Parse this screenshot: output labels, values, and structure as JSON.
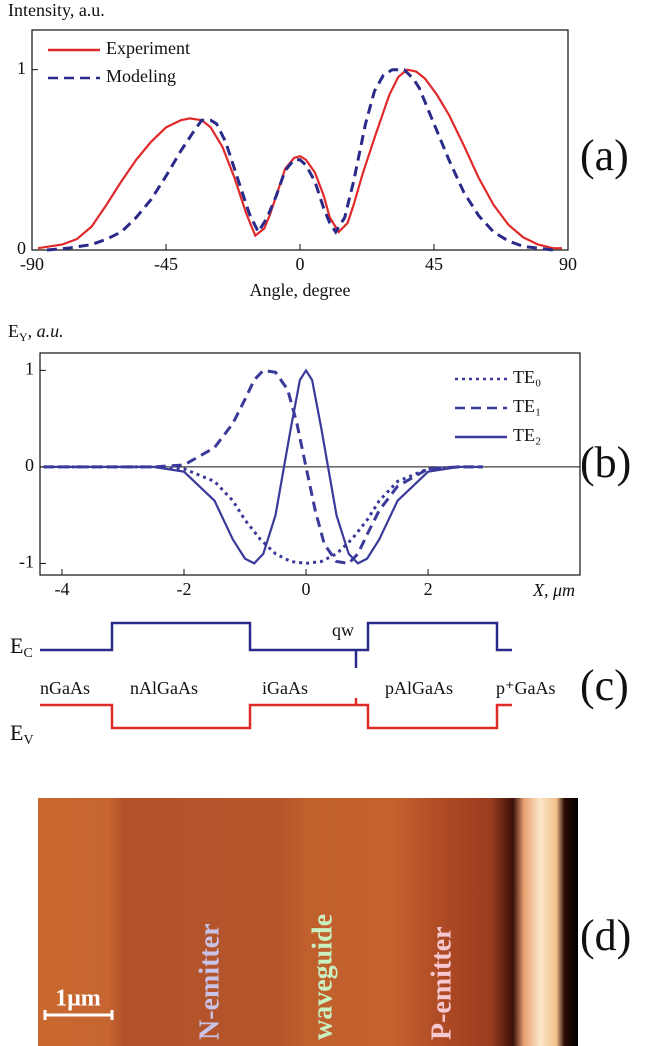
{
  "chart_data": [
    {
      "type": "line",
      "ylabel": "Intensity, a.u.",
      "xlabel": "Angle, degree",
      "panel_label": "(a)",
      "xlim": [
        -90,
        90
      ],
      "xticks": [
        -90,
        -45,
        0,
        45,
        90
      ],
      "ylim": [
        0,
        1.22
      ],
      "yticks": [
        0,
        1
      ],
      "legend": "upper left",
      "series": [
        {
          "name": "Experiment",
          "color": "#e02a2a",
          "line_style": "solid",
          "x": [
            -88,
            -80,
            -75,
            -70,
            -65,
            -60,
            -55,
            -50,
            -45,
            -40,
            -37,
            -33,
            -30,
            -26,
            -22,
            -18,
            -15,
            -12,
            -10,
            -7,
            -5,
            -2,
            0,
            2,
            5,
            8,
            10,
            13,
            16,
            18,
            21,
            25,
            30,
            33,
            36,
            39,
            42,
            46,
            50,
            55,
            60,
            65,
            70,
            75,
            80,
            85,
            88
          ],
          "values": [
            0.01,
            0.03,
            0.06,
            0.13,
            0.25,
            0.38,
            0.5,
            0.6,
            0.68,
            0.72,
            0.73,
            0.72,
            0.68,
            0.57,
            0.4,
            0.2,
            0.08,
            0.12,
            0.2,
            0.35,
            0.45,
            0.51,
            0.52,
            0.5,
            0.43,
            0.3,
            0.18,
            0.1,
            0.15,
            0.25,
            0.42,
            0.62,
            0.86,
            0.96,
            1.0,
            0.99,
            0.95,
            0.86,
            0.75,
            0.58,
            0.4,
            0.25,
            0.14,
            0.07,
            0.03,
            0.01,
            0.01
          ]
        },
        {
          "name": "Modeling",
          "color": "#2a2a8a",
          "line_style": "dashed",
          "x": [
            -85,
            -78,
            -70,
            -65,
            -60,
            -55,
            -50,
            -45,
            -40,
            -36,
            -33,
            -30,
            -28,
            -25,
            -20,
            -17,
            -14,
            -11,
            -8,
            -5,
            -2,
            0,
            2,
            5,
            8,
            10,
            12,
            15,
            18,
            22,
            25,
            28,
            31,
            35,
            38,
            40,
            43,
            45,
            50,
            55,
            60,
            65,
            70,
            75,
            80,
            85
          ],
          "values": [
            0.0,
            0.01,
            0.03,
            0.06,
            0.1,
            0.18,
            0.28,
            0.41,
            0.55,
            0.65,
            0.72,
            0.72,
            0.7,
            0.6,
            0.35,
            0.2,
            0.1,
            0.18,
            0.3,
            0.44,
            0.5,
            0.5,
            0.47,
            0.38,
            0.23,
            0.15,
            0.1,
            0.18,
            0.38,
            0.7,
            0.88,
            0.97,
            1.0,
            1.0,
            0.95,
            0.9,
            0.78,
            0.7,
            0.5,
            0.32,
            0.19,
            0.1,
            0.05,
            0.02,
            0.01,
            0.0
          ]
        }
      ]
    },
    {
      "type": "line",
      "ylabel": "E",
      "ylabel_sub": "Y",
      "ylabel_rest": ", a.u.",
      "xlabel": "X, μm",
      "panel_label": "(b)",
      "xlim": [
        -4.36,
        4.49
      ],
      "xticks": [
        -4,
        -2,
        0,
        2
      ],
      "ylim": [
        -1.12,
        1.18
      ],
      "yticks": [
        -1,
        0,
        1
      ],
      "legend": "upper right",
      "zero_line": true,
      "series": [
        {
          "name": "TE₀",
          "color": "#3a3a9a",
          "line_style": "dotted",
          "x": [
            -4.3,
            -2.5,
            -2,
            -1.5,
            -1.2,
            -1,
            -0.75,
            -0.5,
            -0.25,
            0,
            0.25,
            0.5,
            0.75,
            1,
            1.2,
            1.5,
            2,
            2.5,
            2.9
          ],
          "values": [
            0,
            0,
            -0.02,
            -0.15,
            -0.35,
            -0.55,
            -0.75,
            -0.9,
            -0.98,
            -1,
            -0.98,
            -0.9,
            -0.75,
            -0.55,
            -0.35,
            -0.15,
            -0.02,
            0,
            0
          ]
        },
        {
          "name": "TE₁",
          "color": "#3a3a9a",
          "line_style": "dashed",
          "x": [
            -4.3,
            -2.5,
            -2,
            -1.5,
            -1.2,
            -1,
            -0.85,
            -0.7,
            -0.5,
            -0.3,
            -0.15,
            0,
            0.15,
            0.3,
            0.5,
            0.7,
            0.85,
            1,
            1.2,
            1.5,
            2,
            2.5,
            2.9
          ],
          "values": [
            0,
            0,
            0.02,
            0.2,
            0.45,
            0.7,
            0.9,
            1.0,
            0.98,
            0.8,
            0.45,
            0,
            -0.45,
            -0.8,
            -0.98,
            -1.0,
            -0.9,
            -0.7,
            -0.45,
            -0.2,
            -0.02,
            0,
            0
          ]
        },
        {
          "name": "TE₂",
          "color": "#3a3a9a",
          "line_style": "solid",
          "x": [
            -4.3,
            -2.5,
            -2,
            -1.5,
            -1.2,
            -1,
            -0.85,
            -0.7,
            -0.5,
            -0.25,
            -0.1,
            0,
            0.1,
            0.25,
            0.5,
            0.7,
            0.85,
            1,
            1.2,
            1.5,
            2,
            2.5,
            2.9
          ],
          "values": [
            0,
            0,
            -0.05,
            -0.35,
            -0.75,
            -0.95,
            -1.0,
            -0.9,
            -0.5,
            0.4,
            0.9,
            1.0,
            0.9,
            0.4,
            -0.5,
            -0.9,
            -1.0,
            -0.95,
            -0.75,
            -0.35,
            -0.05,
            0,
            0
          ]
        }
      ]
    }
  ],
  "band_diagram": {
    "ec": "E",
    "ec_sub": "C",
    "ev": "E",
    "ev_sub": "V",
    "qw": "qw",
    "layers": [
      "nGaAs",
      "nAlGaAs",
      "iGaAs",
      "pAlGaAs",
      "p⁺GaAs"
    ],
    "panel_label": "(c)"
  },
  "image": {
    "labels": [
      "N-emitter",
      "waveguide",
      "P-emitter"
    ],
    "scale_bar": "1μm",
    "panel_label": "(d)"
  }
}
